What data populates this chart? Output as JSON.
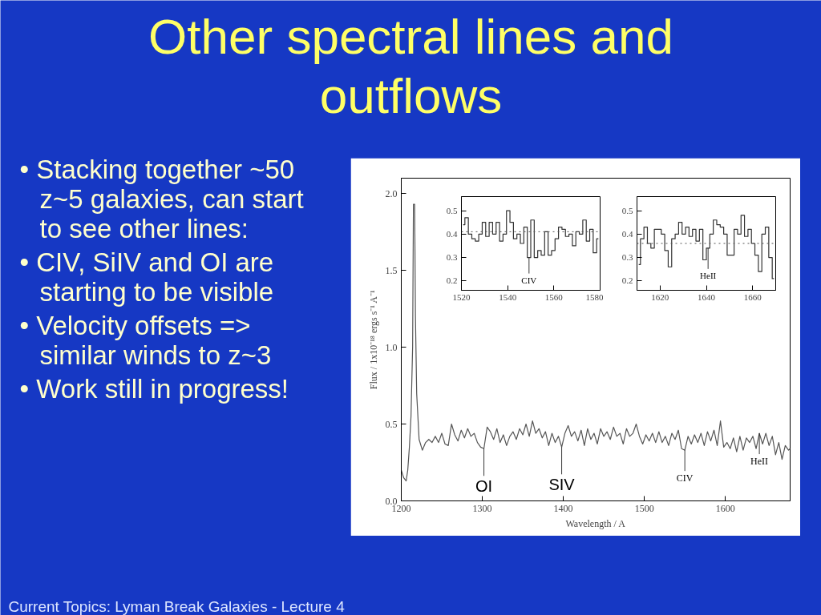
{
  "chart_data": [
    {
      "type": "other",
      "title": "Other spectral lines and outflows",
      "annotations": [
        "• Stacking together ~50 z~5 galaxies, can start to see other lines:",
        "• CIV, SiIV and OI are starting to be visible",
        "• Velocity offsets => similar winds to z~3",
        "• Work still in progress!",
        "Current Topics:  Lyman Break Galaxies - Lecture 4"
      ]
    },
    {
      "type": "line",
      "color": "#555555",
      "xlabel": "Wavelength / A",
      "ylabel": "Flux / 1x10⁻¹⁸ ergs s⁻¹ A⁻¹",
      "x": [
        1200,
        1203,
        1206,
        1208,
        1210,
        1212,
        1214,
        1215,
        1216.5,
        1217.5,
        1219,
        1222,
        1226,
        1230,
        1234,
        1238,
        1242,
        1246,
        1250,
        1254,
        1258,
        1262,
        1266,
        1270,
        1274,
        1278,
        1282,
        1286,
        1290,
        1294,
        1298,
        1302,
        1306,
        1310,
        1314,
        1318,
        1322,
        1326,
        1330,
        1334,
        1338,
        1342,
        1346,
        1350,
        1354,
        1358,
        1362,
        1366,
        1370,
        1374,
        1378,
        1382,
        1386,
        1390,
        1394,
        1398,
        1402,
        1406,
        1410,
        1414,
        1418,
        1422,
        1426,
        1430,
        1434,
        1438,
        1442,
        1446,
        1450,
        1454,
        1458,
        1462,
        1466,
        1470,
        1474,
        1478,
        1482,
        1486,
        1490,
        1494,
        1498,
        1502,
        1506,
        1510,
        1514,
        1518,
        1522,
        1526,
        1530,
        1534,
        1538,
        1542,
        1546,
        1550,
        1554,
        1558,
        1562,
        1566,
        1570,
        1574,
        1578,
        1582,
        1586,
        1590,
        1594,
        1598,
        1602,
        1606,
        1610,
        1614,
        1618,
        1622,
        1626,
        1630,
        1634,
        1638,
        1642,
        1646,
        1650,
        1654,
        1658,
        1662,
        1666,
        1670,
        1674,
        1678,
        1680
      ],
      "values": [
        0.2,
        0.15,
        0.13,
        0.2,
        0.35,
        0.55,
        1.0,
        1.93,
        1.93,
        1.2,
        0.7,
        0.4,
        0.33,
        0.38,
        0.4,
        0.38,
        0.42,
        0.38,
        0.44,
        0.37,
        0.36,
        0.5,
        0.43,
        0.39,
        0.46,
        0.41,
        0.47,
        0.42,
        0.44,
        0.38,
        0.35,
        0.34,
        0.48,
        0.45,
        0.4,
        0.47,
        0.38,
        0.43,
        0.36,
        0.42,
        0.45,
        0.4,
        0.47,
        0.43,
        0.5,
        0.42,
        0.52,
        0.44,
        0.47,
        0.41,
        0.45,
        0.36,
        0.44,
        0.38,
        0.42,
        0.35,
        0.44,
        0.49,
        0.42,
        0.45,
        0.39,
        0.46,
        0.36,
        0.47,
        0.4,
        0.44,
        0.37,
        0.47,
        0.42,
        0.45,
        0.4,
        0.48,
        0.42,
        0.44,
        0.37,
        0.47,
        0.42,
        0.44,
        0.5,
        0.42,
        0.37,
        0.43,
        0.39,
        0.44,
        0.38,
        0.45,
        0.38,
        0.42,
        0.36,
        0.44,
        0.4,
        0.46,
        0.34,
        0.33,
        0.42,
        0.37,
        0.43,
        0.38,
        0.44,
        0.36,
        0.45,
        0.39,
        0.46,
        0.36,
        0.52,
        0.35,
        0.38,
        0.34,
        0.41,
        0.32,
        0.42,
        0.33,
        0.41,
        0.38,
        0.42,
        0.34,
        0.44,
        0.37,
        0.44,
        0.36,
        0.42,
        0.3,
        0.38,
        0.27,
        0.36,
        0.33,
        0.34
      ],
      "xlim": [
        1200,
        1680
      ],
      "ylim": [
        0,
        2.1
      ],
      "xticks": [
        1200,
        1300,
        1400,
        1500,
        1600
      ],
      "yticks": [
        {
          "value": 0,
          "label": "0.0"
        },
        {
          "value": 0.5,
          "label": "0.5"
        },
        {
          "value": 1,
          "label": "1.0"
        },
        {
          "value": 1.5,
          "label": "1.5"
        },
        {
          "value": 2,
          "label": "2.0"
        }
      ],
      "annotations": [
        {
          "text": "OI",
          "x": 1302,
          "y": 0.34
        },
        {
          "text": "SIV",
          "x": 1398,
          "y": 0.35
        },
        {
          "text": "CIV",
          "x": 1550,
          "y": 0.33
        },
        {
          "text": "HeII",
          "x": 1642,
          "y": 0.44
        }
      ]
    },
    {
      "type": "step",
      "color": "#333333",
      "x": [
        1520.75,
        1522.25,
        1523.75,
        1525.25,
        1526.75,
        1528.25,
        1529.75,
        1531.25,
        1532.75,
        1534.25,
        1535.75,
        1537.25,
        1538.75,
        1540.25,
        1541.75,
        1543.25,
        1544.75,
        1546.25,
        1547.75,
        1549.25,
        1550.75,
        1552.25,
        1553.75,
        1555.25,
        1556.75,
        1558.25,
        1559.75,
        1561.25,
        1562.75,
        1564.25,
        1565.75,
        1567.25,
        1568.75,
        1570.25,
        1571.75,
        1573.25,
        1574.75,
        1576.25,
        1577.75,
        1579.25
      ],
      "values": [
        0.44,
        0.47,
        0.4,
        0.38,
        0.37,
        0.4,
        0.45,
        0.39,
        0.45,
        0.4,
        0.45,
        0.37,
        0.4,
        0.5,
        0.45,
        0.38,
        0.4,
        0.36,
        0.43,
        0.3,
        0.46,
        0.3,
        0.33,
        0.31,
        0.41,
        0.31,
        0.33,
        0.38,
        0.43,
        0.42,
        0.39,
        0.4,
        0.35,
        0.41,
        0.4,
        0.46,
        0.37,
        0.42,
        0.32,
        0.38
      ],
      "xlim": [
        1520,
        1580
      ],
      "ylim": [
        0.16,
        0.56
      ],
      "xticks": [
        1520,
        1540,
        1560,
        1580
      ],
      "yticks": [
        0.2,
        0.3,
        0.4,
        0.5
      ],
      "ref_lines": [
        {
          "axis": "y",
          "value": 0.41,
          "line_style": "dotted"
        }
      ],
      "annotations": [
        {
          "text": "CIV",
          "x": 1549.25,
          "y": 0.3
        }
      ]
    },
    {
      "type": "step",
      "color": "#333333",
      "x": [
        1610.75,
        1612.25,
        1613.75,
        1615.25,
        1616.75,
        1618.25,
        1619.75,
        1621.25,
        1622.75,
        1624.25,
        1625.75,
        1627.25,
        1628.75,
        1630.25,
        1631.75,
        1633.25,
        1634.75,
        1636.25,
        1637.75,
        1639.25,
        1640.75,
        1642.25,
        1643.75,
        1645.25,
        1646.75,
        1648.25,
        1649.75,
        1651.25,
        1652.75,
        1654.25,
        1655.75,
        1657.25,
        1658.75,
        1660.25,
        1661.75,
        1663.25,
        1664.75,
        1666.25,
        1667.75,
        1669.25
      ],
      "values": [
        0.27,
        0.38,
        0.43,
        0.36,
        0.34,
        0.42,
        0.42,
        0.4,
        0.33,
        0.26,
        0.38,
        0.4,
        0.45,
        0.4,
        0.43,
        0.39,
        0.42,
        0.37,
        0.42,
        0.29,
        0.34,
        0.4,
        0.46,
        0.44,
        0.43,
        0.4,
        0.31,
        0.31,
        0.42,
        0.4,
        0.48,
        0.39,
        0.42,
        0.36,
        0.31,
        0.24,
        0.4,
        0.43,
        0.3,
        0.21
      ],
      "xlim": [
        1610,
        1670
      ],
      "ylim": [
        0.16,
        0.56
      ],
      "xticks": [
        1620,
        1640,
        1660
      ],
      "yticks": [
        0.2,
        0.3,
        0.4,
        0.5
      ],
      "ref_lines": [
        {
          "axis": "y",
          "value": 0.36,
          "line_style": "dotted"
        }
      ],
      "annotations": [
        {
          "text": "HeII",
          "x": 1640.75,
          "y": 0.34
        }
      ]
    }
  ]
}
